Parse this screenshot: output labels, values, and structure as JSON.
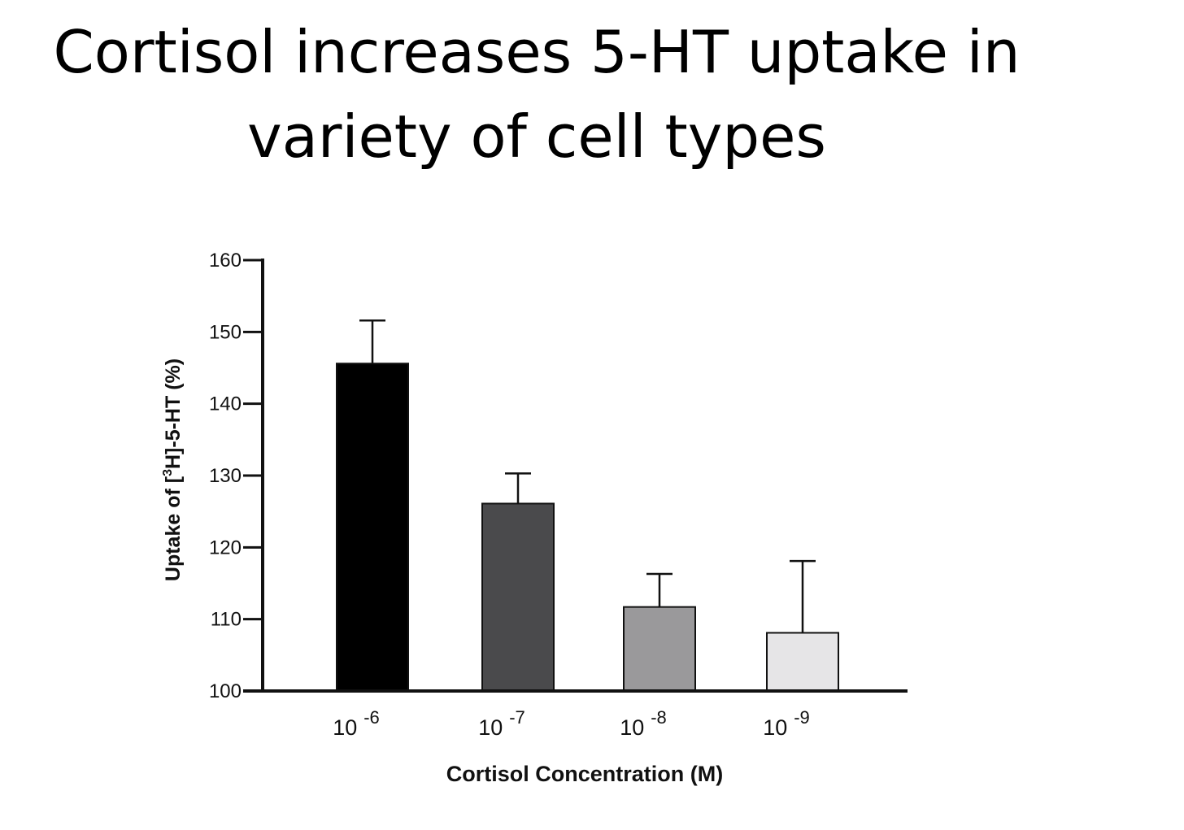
{
  "slide": {
    "title_line1": "Cortisol increases 5-HT uptake in",
    "title_line2": "variety of cell types"
  },
  "chart_data": {
    "type": "bar",
    "title": "",
    "categories": [
      {
        "base": "10",
        "exp": "-6"
      },
      {
        "base": "10",
        "exp": "-7"
      },
      {
        "base": "10",
        "exp": "-8"
      },
      {
        "base": "10",
        "exp": "-9"
      }
    ],
    "values": [
      145.6,
      126.1,
      111.7,
      108.1
    ],
    "error_upper": [
      151.6,
      130.3,
      116.3,
      118.1
    ],
    "bar_colors": [
      "#000000",
      "#4a4a4c",
      "#9a999b",
      "#e6e5e7"
    ],
    "xlabel": "Cortisol Concentration (M)",
    "ylabel": {
      "prefix": "Uptake of [",
      "sup": "3",
      "suffix": "H]-5-HT (%)"
    },
    "ylim": [
      100,
      160
    ],
    "yticks": [
      "100",
      "110",
      "120",
      "130",
      "140",
      "150",
      "160"
    ],
    "grid": false
  }
}
